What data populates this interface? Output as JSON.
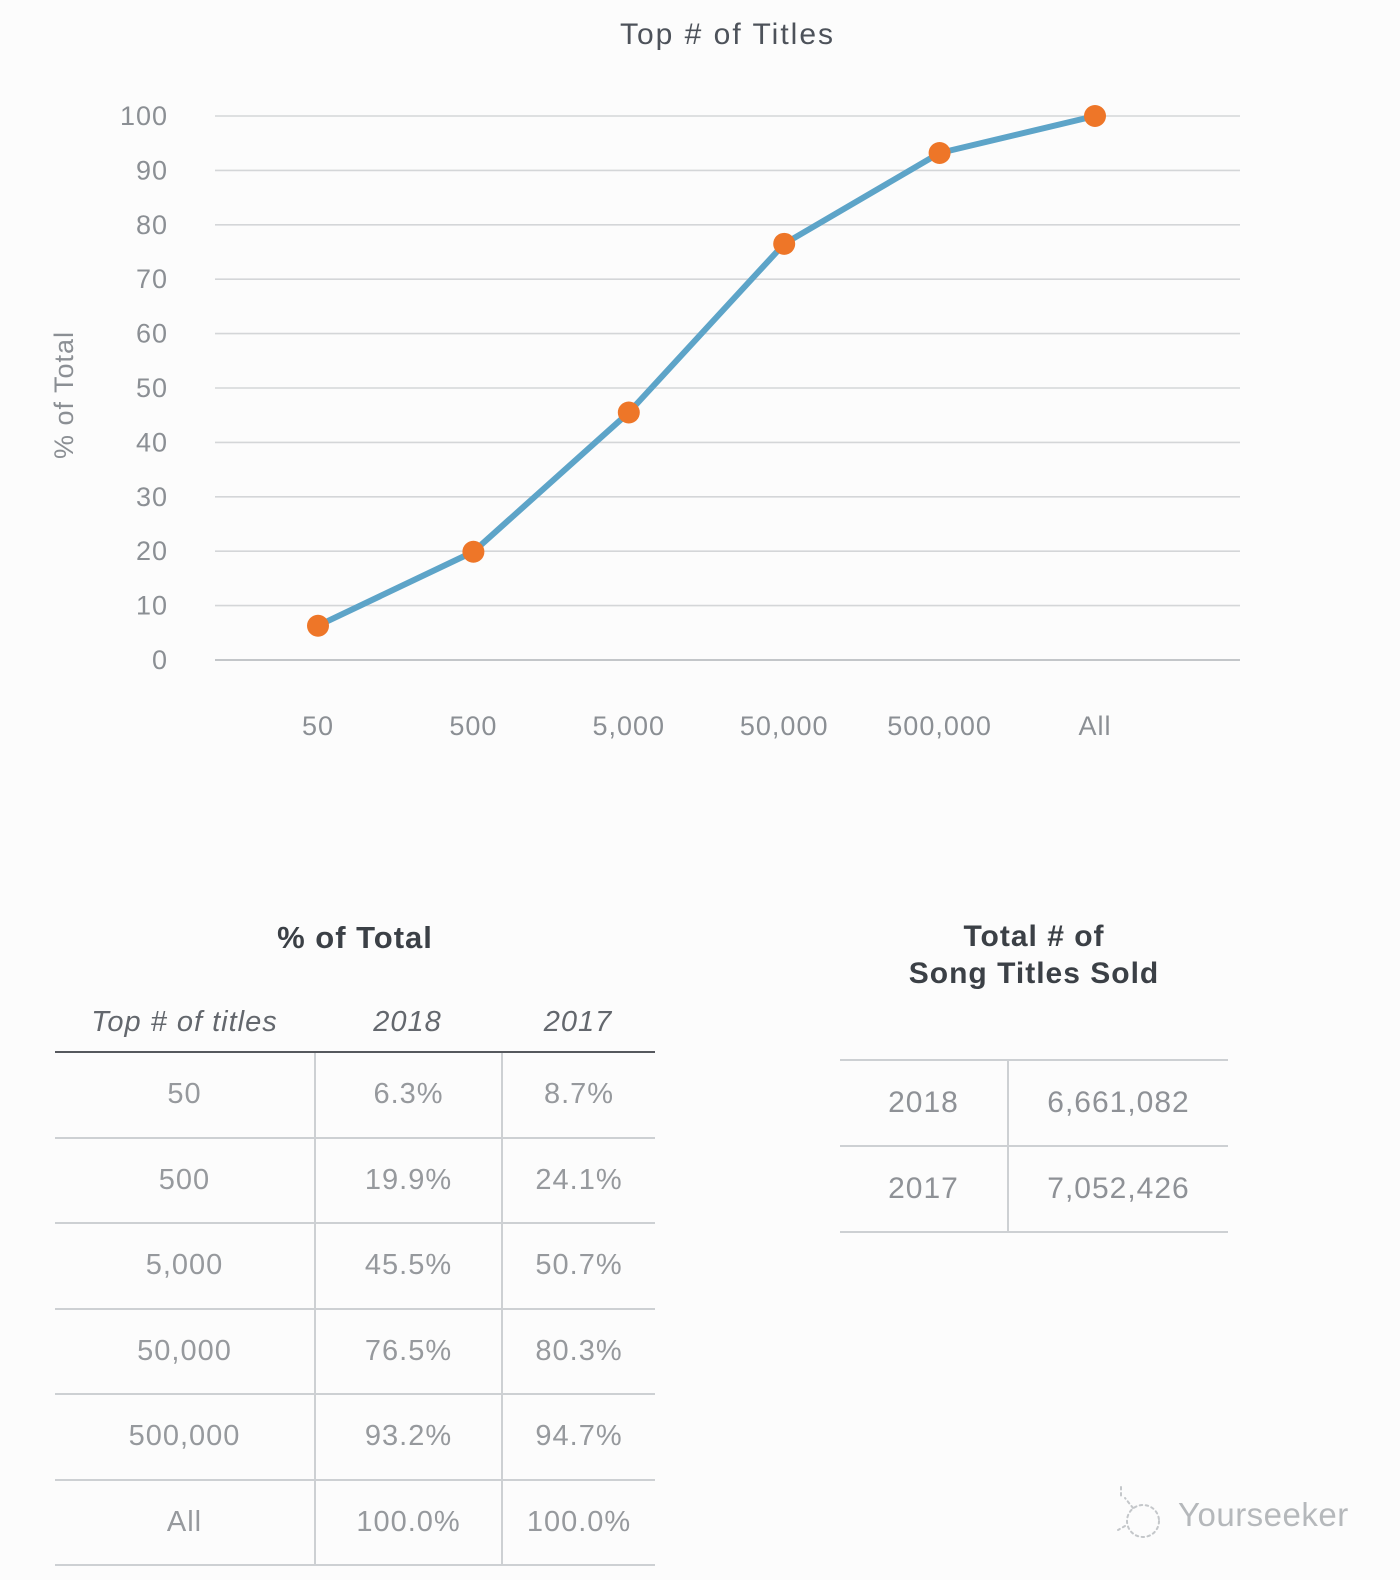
{
  "chart_data": {
    "type": "line",
    "title": "Top # of Titles",
    "categories": [
      "50",
      "500",
      "5,000",
      "50,000",
      "500,000",
      "All"
    ],
    "series": [
      {
        "name": "2018",
        "values": [
          6.3,
          19.9,
          45.5,
          76.5,
          93.2,
          100.0
        ]
      }
    ],
    "xlabel": "",
    "ylabel": "% of Total",
    "ylim": [
      0,
      100
    ],
    "ytick_step": 10,
    "grid": true,
    "legend": "none",
    "line_color": "#5da4c8",
    "marker_color": "#ee7628"
  },
  "left_table": {
    "title": "% of Total",
    "headers": [
      "Top # of titles",
      "2018",
      "2017"
    ],
    "rows": [
      [
        "50",
        "6.3%",
        "8.7%"
      ],
      [
        "500",
        "19.9%",
        "24.1%"
      ],
      [
        "5,000",
        "45.5%",
        "50.7%"
      ],
      [
        "50,000",
        "76.5%",
        "80.3%"
      ],
      [
        "500,000",
        "93.2%",
        "94.7%"
      ],
      [
        "All",
        "100.0%",
        "100.0%"
      ]
    ]
  },
  "right_table": {
    "title_line1": "Total # of",
    "title_line2": "Song Titles Sold",
    "rows": [
      [
        "2018",
        "6,661,082"
      ],
      [
        "2017",
        "7,052,426"
      ]
    ]
  },
  "watermark": {
    "text": "Yourseeker"
  }
}
